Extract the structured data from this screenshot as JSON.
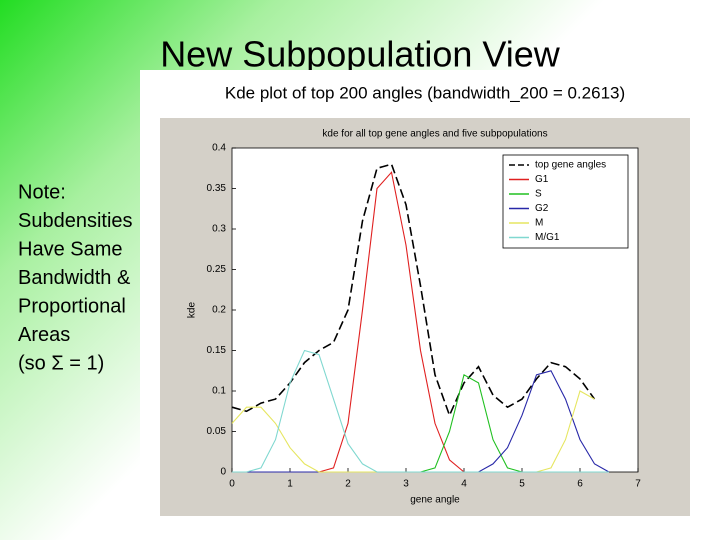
{
  "slide": {
    "title": "New Subpopulation View",
    "subtitle": "Kde plot of top 200 angles  (bandwidth_200 = 0.2613)",
    "note": [
      "Note:",
      "Subdensities",
      "Have Same",
      "Bandwidth &",
      "Proportional",
      "Areas",
      "(so  Σ = 1)"
    ]
  },
  "chart_data": {
    "type": "line",
    "title": "kde for all top gene angles and five subpopulations",
    "x_label": "gene angle",
    "y_label": "kde",
    "xlim": [
      0,
      7
    ],
    "xticks": [
      0,
      1,
      2,
      3,
      4,
      5,
      6,
      7
    ],
    "ylim": [
      0,
      0.4
    ],
    "yticks": [
      0,
      0.05,
      0.1,
      0.15,
      0.2,
      0.25,
      0.3,
      0.35,
      0.4
    ],
    "legend": "upper right",
    "x": [
      0,
      0.25,
      0.5,
      0.75,
      1,
      1.25,
      1.5,
      1.75,
      2,
      2.25,
      2.5,
      2.75,
      3,
      3.25,
      3.5,
      3.75,
      4,
      4.25,
      4.5,
      4.75,
      5,
      5.25,
      5.5,
      5.75,
      6,
      6.25,
      6.5
    ],
    "series": [
      {
        "name": "top gene angles",
        "color": "#000000",
        "dash": "dashed",
        "values": [
          0.08,
          0.075,
          0.085,
          0.09,
          0.11,
          0.135,
          0.15,
          0.16,
          0.2,
          0.31,
          0.375,
          0.38,
          0.33,
          0.23,
          0.12,
          0.07,
          0.11,
          0.13,
          0.095,
          0.08,
          0.09,
          0.115,
          0.135,
          0.13,
          0.115,
          0.09,
          null
        ]
      },
      {
        "name": "G1",
        "color": "#e02020",
        "dash": "solid",
        "values": [
          0,
          0,
          0,
          0,
          0,
          0,
          0,
          0.005,
          0.06,
          0.2,
          0.35,
          0.37,
          0.28,
          0.15,
          0.06,
          0.015,
          0,
          0,
          0,
          0,
          0,
          0,
          0,
          0,
          0,
          0,
          0
        ]
      },
      {
        "name": "S",
        "color": "#20c020",
        "dash": "solid",
        "values": [
          0,
          0,
          0,
          0,
          0,
          0,
          0,
          0,
          0,
          0,
          0,
          0,
          0,
          0,
          0.005,
          0.05,
          0.12,
          0.11,
          0.04,
          0.005,
          0,
          0,
          0,
          0,
          0,
          0,
          0
        ]
      },
      {
        "name": "G2",
        "color": "#2828a8",
        "dash": "solid",
        "values": [
          0,
          0,
          0,
          0,
          0,
          0,
          0,
          0,
          0,
          0,
          0,
          0,
          0,
          0,
          0,
          0,
          0,
          0,
          0.01,
          0.03,
          0.07,
          0.12,
          0.125,
          0.09,
          0.04,
          0.01,
          0
        ]
      },
      {
        "name": "M",
        "color": "#e6e660",
        "dash": "solid",
        "values": [
          0.06,
          0.08,
          0.08,
          0.06,
          0.03,
          0.01,
          0,
          0,
          0,
          0,
          0,
          0,
          0,
          0,
          0,
          0,
          0,
          0,
          0,
          0,
          0,
          0,
          0.005,
          0.04,
          0.1,
          0.09,
          null
        ]
      },
      {
        "name": "M/G1",
        "color": "#80d8d0",
        "dash": "solid",
        "values": [
          0,
          0,
          0.005,
          0.04,
          0.11,
          0.15,
          0.145,
          0.09,
          0.035,
          0.01,
          0,
          0,
          0,
          0,
          0,
          0,
          0,
          0,
          0,
          0,
          0,
          0,
          0,
          0,
          0,
          0,
          0
        ]
      }
    ]
  }
}
